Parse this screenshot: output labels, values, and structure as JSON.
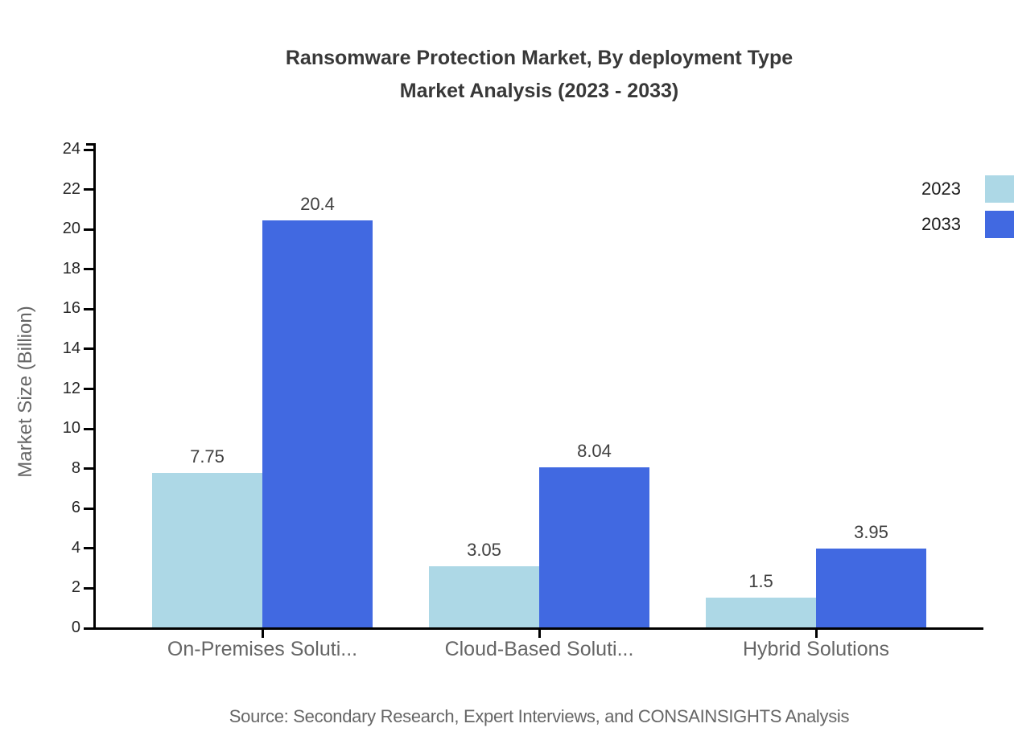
{
  "title": {
    "line1": "Ransomware Protection Market, By deployment Type",
    "line2": "Market Analysis (2023 - 2033)"
  },
  "source": "Source: Secondary Research, Expert Interviews, and CONSAINSIGHTS Analysis",
  "legend": {
    "items": [
      {
        "label": "2023",
        "color": "#ADD8E6"
      },
      {
        "label": "2033",
        "color": "#4169E1"
      }
    ]
  },
  "chart_data": {
    "type": "bar",
    "title": "Ransomware Protection Market, By deployment Type Market Analysis (2023 - 2033)",
    "categories": [
      "On-Premises Soluti...",
      "Cloud-Based Soluti...",
      "Hybrid Solutions"
    ],
    "series": [
      {
        "name": "2023",
        "color": "#ADD8E6",
        "values": [
          7.75,
          3.05,
          1.5
        ]
      },
      {
        "name": "2033",
        "color": "#4169E1",
        "values": [
          20.4,
          8.04,
          3.95
        ]
      }
    ],
    "value_labels": [
      [
        "7.75",
        "3.05",
        "1.5"
      ],
      [
        "20.4",
        "8.04",
        "3.95"
      ]
    ],
    "xlabel": "",
    "ylabel": "Market Size (Billion)",
    "ylim": [
      0,
      24
    ],
    "yticks": [
      0,
      2,
      4,
      6,
      8,
      10,
      12,
      14,
      16,
      18,
      20,
      22,
      24
    ],
    "grid": false,
    "legend_position": "top-right"
  },
  "colors": {
    "axis": "#000000",
    "title_text": "#383838",
    "tick_text": "#262626",
    "category_text": "#666666",
    "value_text": "#404040",
    "source_text": "#666666"
  }
}
